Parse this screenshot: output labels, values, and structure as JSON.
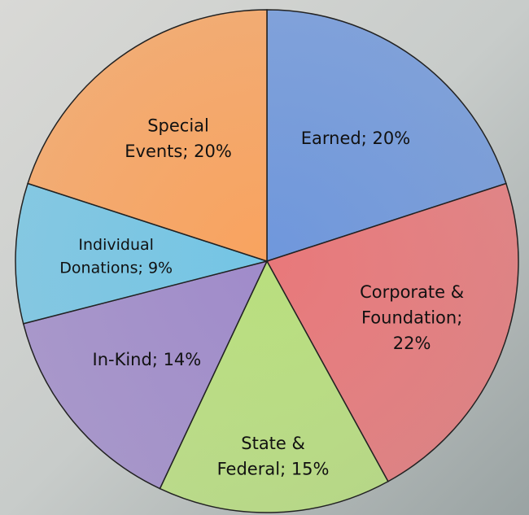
{
  "chart_data": {
    "type": "pie",
    "categories": [
      "Earned",
      "Corporate & Foundation",
      "State & Federal",
      "In-Kind",
      "Individual Donations",
      "Special Events"
    ],
    "values": [
      20,
      22,
      15,
      14,
      9,
      20
    ],
    "value_labels": [
      "Earned; 20%",
      "Corporate & Foundation; 22%",
      "State & Federal; 15%",
      "In-Kind; 14%",
      "Individual Donations; 9%",
      "Special Events; 20%"
    ],
    "colors": [
      "#6f97dc",
      "#e8787a",
      "#b9df7e",
      "#a08bca",
      "#74c5e5",
      "#f9a35f"
    ]
  }
}
